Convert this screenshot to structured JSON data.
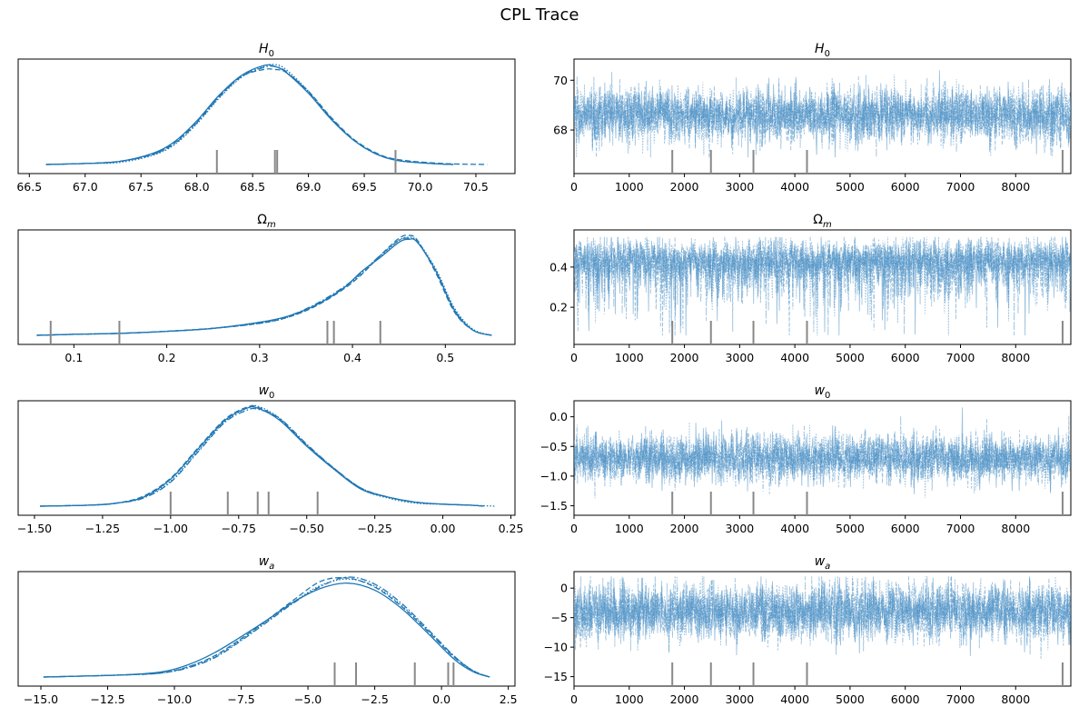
{
  "figure": {
    "title": "CPL Trace"
  },
  "colors": {
    "line": "#1f77b4",
    "trace": "#4a90c4",
    "axis": "#000000",
    "rug": "#888888"
  },
  "chart_data": [
    {
      "type": "line",
      "kind": "density",
      "title": "H0",
      "title_parts": {
        "base": "H",
        "sub": "0"
      },
      "xlim": [
        66.4,
        70.85
      ],
      "xticks": [
        66.5,
        67.0,
        67.5,
        68.0,
        68.5,
        69.0,
        69.5,
        70.0,
        70.5
      ],
      "xtick_labels": [
        "66.5",
        "67.0",
        "67.5",
        "68.0",
        "68.5",
        "69.0",
        "69.5",
        "70.0",
        "70.5"
      ],
      "peak_location": 68.65,
      "series": [
        {
          "name": "chain 0",
          "dash": "solid",
          "x": [
            66.65,
            67.0,
            67.3,
            67.6,
            67.8,
            68.0,
            68.2,
            68.4,
            68.6,
            68.7,
            68.8,
            69.0,
            69.2,
            69.4,
            69.6,
            69.8,
            70.1,
            70.3
          ],
          "y": [
            0.0,
            0.01,
            0.03,
            0.11,
            0.23,
            0.44,
            0.7,
            0.9,
            1.0,
            0.99,
            0.93,
            0.72,
            0.46,
            0.25,
            0.11,
            0.04,
            0.01,
            0.0
          ]
        },
        {
          "name": "chain 1",
          "dash": "dashed",
          "x": [
            66.65,
            67.0,
            67.3,
            67.6,
            67.8,
            68.0,
            68.2,
            68.4,
            68.6,
            68.7,
            68.8,
            69.0,
            69.2,
            69.4,
            69.6,
            69.8,
            70.2,
            70.6
          ],
          "y": [
            0.0,
            0.01,
            0.03,
            0.1,
            0.22,
            0.43,
            0.69,
            0.89,
            0.96,
            0.96,
            0.93,
            0.74,
            0.48,
            0.26,
            0.12,
            0.05,
            0.01,
            0.0
          ]
        },
        {
          "name": "chain 2",
          "dash": "dotted",
          "x": [
            66.65,
            67.0,
            67.3,
            67.6,
            67.8,
            68.0,
            68.2,
            68.4,
            68.6,
            68.7,
            68.8,
            69.0,
            69.2,
            69.4,
            69.6,
            69.8,
            70.1,
            70.3
          ],
          "y": [
            0.0,
            0.01,
            0.02,
            0.09,
            0.2,
            0.41,
            0.67,
            0.88,
            0.99,
            1.01,
            0.96,
            0.74,
            0.47,
            0.25,
            0.11,
            0.04,
            0.01,
            0.0
          ]
        },
        {
          "name": "chain 3",
          "dash": "dashdot",
          "x": [
            66.65,
            67.0,
            67.3,
            67.6,
            67.8,
            68.0,
            68.2,
            68.4,
            68.6,
            68.7,
            68.8,
            69.0,
            69.2,
            69.4,
            69.6,
            69.8,
            70.1,
            70.3
          ],
          "y": [
            0.0,
            0.01,
            0.03,
            0.1,
            0.21,
            0.42,
            0.68,
            0.89,
            0.98,
            0.99,
            0.94,
            0.73,
            0.47,
            0.25,
            0.11,
            0.04,
            0.01,
            0.0
          ]
        }
      ],
      "rug": [
        68.18,
        68.7,
        68.72,
        69.78
      ]
    },
    {
      "type": "line",
      "kind": "trace",
      "title": "H0",
      "title_parts": {
        "base": "H",
        "sub": "0"
      },
      "xlim": [
        0,
        8999
      ],
      "ylim": [
        66.25,
        70.85
      ],
      "xticks": [
        0,
        1000,
        2000,
        3000,
        4000,
        5000,
        6000,
        7000,
        8000
      ],
      "xtick_labels": [
        "0",
        "1000",
        "2000",
        "3000",
        "4000",
        "5000",
        "6000",
        "7000",
        "8000"
      ],
      "yticks": [
        68,
        70
      ],
      "ytick_labels": [
        "68",
        "70"
      ],
      "center": 68.6,
      "spread": 0.55,
      "min": 66.9,
      "max": 70.6,
      "rug": [
        1780,
        2480,
        3250,
        4220,
        8850
      ]
    },
    {
      "type": "line",
      "kind": "density",
      "title": "Ωm",
      "title_parts": {
        "base": "Ω",
        "sub": "m"
      },
      "xlim": [
        0.04,
        0.575
      ],
      "xticks": [
        0.1,
        0.2,
        0.3,
        0.4,
        0.5
      ],
      "xtick_labels": [
        "0.1",
        "0.2",
        "0.3",
        "0.4",
        "0.5"
      ],
      "peak_location": 0.455,
      "series": [
        {
          "name": "chain 0",
          "dash": "solid",
          "x": [
            0.06,
            0.1,
            0.15,
            0.2,
            0.25,
            0.3,
            0.33,
            0.36,
            0.39,
            0.41,
            0.43,
            0.45,
            0.46,
            0.47,
            0.49,
            0.51,
            0.53,
            0.55
          ],
          "y": [
            0.0,
            0.01,
            0.02,
            0.04,
            0.07,
            0.13,
            0.19,
            0.3,
            0.47,
            0.64,
            0.78,
            0.93,
            0.96,
            0.93,
            0.64,
            0.25,
            0.05,
            0.0
          ]
        },
        {
          "name": "chain 1",
          "dash": "dashed",
          "x": [
            0.06,
            0.1,
            0.15,
            0.2,
            0.25,
            0.3,
            0.33,
            0.36,
            0.39,
            0.41,
            0.43,
            0.45,
            0.46,
            0.47,
            0.49,
            0.51,
            0.53,
            0.55
          ],
          "y": [
            0.0,
            0.01,
            0.02,
            0.04,
            0.07,
            0.12,
            0.18,
            0.29,
            0.46,
            0.61,
            0.8,
            0.97,
            1.0,
            0.95,
            0.62,
            0.23,
            0.05,
            0.0
          ]
        },
        {
          "name": "chain 2",
          "dash": "dotted",
          "x": [
            0.06,
            0.1,
            0.15,
            0.2,
            0.25,
            0.3,
            0.33,
            0.36,
            0.39,
            0.41,
            0.43,
            0.45,
            0.46,
            0.47,
            0.49,
            0.51,
            0.53,
            0.55
          ],
          "y": [
            0.0,
            0.01,
            0.02,
            0.04,
            0.07,
            0.12,
            0.18,
            0.3,
            0.47,
            0.62,
            0.79,
            0.95,
            0.98,
            0.94,
            0.66,
            0.27,
            0.06,
            0.0
          ]
        },
        {
          "name": "chain 3",
          "dash": "dashdot",
          "x": [
            0.06,
            0.1,
            0.15,
            0.2,
            0.25,
            0.3,
            0.33,
            0.36,
            0.39,
            0.41,
            0.43,
            0.45,
            0.46,
            0.47,
            0.49,
            0.51,
            0.53,
            0.55
          ],
          "y": [
            0.0,
            0.01,
            0.02,
            0.04,
            0.07,
            0.13,
            0.19,
            0.31,
            0.48,
            0.63,
            0.8,
            0.95,
            0.97,
            0.93,
            0.64,
            0.24,
            0.05,
            0.0
          ]
        }
      ],
      "rug": [
        0.075,
        0.149,
        0.373,
        0.38,
        0.43
      ]
    },
    {
      "type": "line",
      "kind": "trace",
      "title": "Ωm",
      "title_parts": {
        "base": "Ω",
        "sub": "m"
      },
      "xlim": [
        0,
        8999
      ],
      "ylim": [
        0.015,
        0.585
      ],
      "xticks": [
        0,
        1000,
        2000,
        3000,
        4000,
        5000,
        6000,
        7000,
        8000
      ],
      "xtick_labels": [
        "0",
        "1000",
        "2000",
        "3000",
        "4000",
        "5000",
        "6000",
        "7000",
        "8000"
      ],
      "yticks": [
        0.2,
        0.4
      ],
      "ytick_labels": [
        "0.2",
        "0.4"
      ],
      "center": 0.44,
      "spread": 0.05,
      "min": 0.06,
      "max": 0.55,
      "skew": "low",
      "rug": [
        1780,
        2480,
        3250,
        4220,
        8850
      ]
    },
    {
      "type": "line",
      "kind": "density",
      "title": "w0",
      "title_parts": {
        "base": "w",
        "sub": "0"
      },
      "xlim": [
        -1.56,
        0.265
      ],
      "xticks": [
        -1.5,
        -1.25,
        -1.0,
        -0.75,
        -0.5,
        -0.25,
        0.0,
        0.25
      ],
      "xtick_labels": [
        "−1.50",
        "−1.25",
        "−1.00",
        "−0.75",
        "−0.50",
        "−0.25",
        "0.00",
        "0.25"
      ],
      "peak_location": -0.7,
      "series": [
        {
          "name": "chain 0",
          "dash": "solid",
          "x": [
            -1.48,
            -1.3,
            -1.2,
            -1.1,
            -1.0,
            -0.9,
            -0.8,
            -0.72,
            -0.68,
            -0.6,
            -0.5,
            -0.4,
            -0.3,
            -0.2,
            -0.1,
            0.0,
            0.1,
            0.15
          ],
          "y": [
            0.0,
            0.01,
            0.03,
            0.09,
            0.27,
            0.57,
            0.86,
            0.98,
            0.98,
            0.86,
            0.6,
            0.37,
            0.17,
            0.09,
            0.04,
            0.02,
            0.01,
            0.0
          ]
        },
        {
          "name": "chain 1",
          "dash": "dashed",
          "x": [
            -1.48,
            -1.3,
            -1.2,
            -1.1,
            -1.0,
            -0.9,
            -0.8,
            -0.72,
            -0.68,
            -0.6,
            -0.5,
            -0.4,
            -0.3,
            -0.2,
            -0.1,
            0.0,
            0.1,
            0.15
          ],
          "y": [
            0.0,
            0.01,
            0.03,
            0.1,
            0.28,
            0.58,
            0.87,
            0.99,
            0.99,
            0.87,
            0.61,
            0.38,
            0.18,
            0.09,
            0.04,
            0.02,
            0.01,
            0.0
          ]
        },
        {
          "name": "chain 2",
          "dash": "dotted",
          "x": [
            -1.48,
            -1.3,
            -1.2,
            -1.1,
            -1.0,
            -0.9,
            -0.8,
            -0.72,
            -0.68,
            -0.6,
            -0.5,
            -0.4,
            -0.3,
            -0.2,
            -0.1,
            0.0,
            0.1,
            0.19
          ],
          "y": [
            0.0,
            0.01,
            0.03,
            0.09,
            0.25,
            0.55,
            0.85,
            0.98,
            1.0,
            0.88,
            0.61,
            0.37,
            0.17,
            0.08,
            0.03,
            0.02,
            0.01,
            0.0
          ]
        },
        {
          "name": "chain 3",
          "dash": "dashdot",
          "x": [
            -1.48,
            -1.3,
            -1.2,
            -1.1,
            -1.0,
            -0.9,
            -0.8,
            -0.72,
            -0.68,
            -0.6,
            -0.5,
            -0.4,
            -0.3,
            -0.2,
            -0.1,
            0.0,
            0.1,
            0.15
          ],
          "y": [
            0.0,
            0.01,
            0.03,
            0.08,
            0.24,
            0.54,
            0.84,
            0.96,
            0.97,
            0.88,
            0.62,
            0.38,
            0.18,
            0.09,
            0.04,
            0.02,
            0.01,
            0.0
          ]
        }
      ],
      "rug": [
        -1.0,
        -0.79,
        -0.68,
        -0.64,
        -0.46
      ]
    },
    {
      "type": "line",
      "kind": "trace",
      "title": "w0",
      "title_parts": {
        "base": "w",
        "sub": "0"
      },
      "xlim": [
        0,
        8999
      ],
      "ylim": [
        -1.66,
        0.27
      ],
      "xticks": [
        0,
        1000,
        2000,
        3000,
        4000,
        5000,
        6000,
        7000,
        8000
      ],
      "xtick_labels": [
        "0",
        "1000",
        "2000",
        "3000",
        "4000",
        "5000",
        "6000",
        "7000",
        "8000"
      ],
      "yticks": [
        -1.5,
        -1.0,
        -0.5,
        0.0
      ],
      "ytick_labels": [
        "−1.5",
        "−1.0",
        "−0.5",
        "0.0"
      ],
      "center": -0.7,
      "spread": 0.2,
      "min": -1.45,
      "max": 0.18,
      "rug": [
        1780,
        2480,
        3250,
        4220,
        8850
      ]
    },
    {
      "type": "line",
      "kind": "density",
      "title": "wa",
      "title_parts": {
        "base": "w",
        "sub": "a"
      },
      "xlim": [
        -15.85,
        2.75
      ],
      "xticks": [
        -15.0,
        -12.5,
        -10.0,
        -7.5,
        -5.0,
        -2.5,
        0.0,
        2.5
      ],
      "xtick_labels": [
        "−15.0",
        "−12.5",
        "−10.0",
        "−7.5",
        "−5.0",
        "−2.5",
        "0.0",
        "2.5"
      ],
      "peak_location": -3.8,
      "series": [
        {
          "name": "chain 0",
          "dash": "solid",
          "x": [
            -14.9,
            -12.0,
            -10.5,
            -9.5,
            -8.5,
            -7.5,
            -6.5,
            -5.5,
            -4.5,
            -3.5,
            -2.5,
            -1.5,
            -0.5,
            0.5,
            1.2,
            1.8
          ],
          "y": [
            0.0,
            0.02,
            0.05,
            0.12,
            0.24,
            0.4,
            0.57,
            0.75,
            0.88,
            0.93,
            0.86,
            0.68,
            0.43,
            0.17,
            0.05,
            0.0
          ]
        },
        {
          "name": "chain 1",
          "dash": "dashed",
          "x": [
            -14.9,
            -12.0,
            -10.5,
            -9.5,
            -8.5,
            -7.5,
            -6.5,
            -5.5,
            -4.5,
            -3.5,
            -2.5,
            -1.5,
            -0.5,
            0.5,
            1.2,
            1.8
          ],
          "y": [
            0.0,
            0.02,
            0.04,
            0.1,
            0.21,
            0.38,
            0.57,
            0.77,
            0.95,
            0.98,
            0.89,
            0.7,
            0.45,
            0.19,
            0.06,
            0.0
          ]
        },
        {
          "name": "chain 2",
          "dash": "dotted",
          "x": [
            -14.9,
            -12.0,
            -10.5,
            -9.5,
            -8.5,
            -7.5,
            -6.5,
            -5.5,
            -4.5,
            -3.5,
            -2.5,
            -1.5,
            -0.5,
            0.5,
            1.2,
            1.8
          ],
          "y": [
            0.0,
            0.02,
            0.04,
            0.1,
            0.2,
            0.37,
            0.56,
            0.75,
            0.91,
            0.97,
            0.9,
            0.71,
            0.46,
            0.2,
            0.06,
            0.0
          ]
        },
        {
          "name": "chain 3",
          "dash": "dashdot",
          "x": [
            -14.9,
            -12.0,
            -10.5,
            -9.5,
            -8.5,
            -7.5,
            -6.5,
            -5.5,
            -4.5,
            -3.5,
            -2.5,
            -1.5,
            -0.5,
            0.5,
            1.2,
            1.8
          ],
          "y": [
            0.0,
            0.02,
            0.04,
            0.09,
            0.19,
            0.36,
            0.55,
            0.74,
            0.9,
            0.99,
            0.92,
            0.73,
            0.47,
            0.2,
            0.06,
            0.0
          ]
        }
      ],
      "rug": [
        -4.0,
        -3.2,
        -1.0,
        0.25,
        0.45
      ]
    },
    {
      "type": "line",
      "kind": "trace",
      "title": "wa",
      "title_parts": {
        "base": "w",
        "sub": "a"
      },
      "xlim": [
        0,
        8999
      ],
      "ylim": [
        -16.6,
        2.8
      ],
      "xticks": [
        0,
        1000,
        2000,
        3000,
        4000,
        5000,
        6000,
        7000,
        8000
      ],
      "xtick_labels": [
        "0",
        "1000",
        "2000",
        "3000",
        "4000",
        "5000",
        "6000",
        "7000",
        "8000"
      ],
      "yticks": [
        -15,
        -10,
        -5,
        0
      ],
      "ytick_labels": [
        "−15",
        "−10",
        "−5",
        "0"
      ],
      "center": -4.0,
      "spread": 2.4,
      "min": -15.0,
      "max": 2.0,
      "rug": [
        1780,
        2480,
        3250,
        4220,
        8850
      ]
    }
  ]
}
